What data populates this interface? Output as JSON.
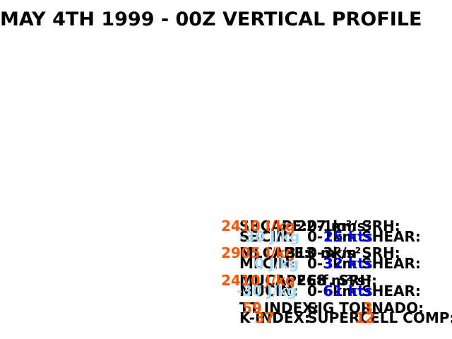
{
  "title": "MAY 4TH 1999 - 00Z VERTICAL PROFILE",
  "chart_data": {
    "type": "table",
    "title": "MAY 4TH 1999 - 00Z VERTICAL PROFILE",
    "parcels": [
      {
        "name": "SBCAPE:",
        "cape": "2410 J/kg",
        "cin_label": "SBCIN:",
        "cin": "-30 J/kg"
      },
      {
        "name": "MLCAPE:",
        "cape": "2905 J/kg",
        "cin_label": "MLCIN:",
        "cin": "0 J/kg"
      },
      {
        "name": "MUCAPE:",
        "cape": "2410 J/kg",
        "cin_label": "MUCIN:",
        "cin": "-30 J/kg"
      }
    ],
    "srh": [
      {
        "label": "0-1km SRH:",
        "value": "227 m²/s²"
      },
      {
        "label": "0-3km SRH:",
        "value": "313 m²/s²"
      },
      {
        "label": "Eff. SRH:",
        "value": "268 m²/s²"
      }
    ],
    "shear": [
      {
        "label": "0-1km SHEAR:",
        "value": "25 kts"
      },
      {
        "label": "0-3km SHEAR:",
        "value": "32 kts"
      },
      {
        "label": "0-6km SHEAR:",
        "value": "61 kts"
      }
    ],
    "indices": [
      {
        "label": "TT INDEX:",
        "value": "59",
        "label2": "SIG TORNADO:",
        "value2": "3"
      },
      {
        "label": "K-INDEX:",
        "value": "37",
        "label2": "SUPERCELL COMP:",
        "value2": "12"
      }
    ]
  },
  "colors": {
    "cape": "#ff5500",
    "cin": "#a8d8f0",
    "wind": "#0000ff",
    "text": "#000000"
  }
}
